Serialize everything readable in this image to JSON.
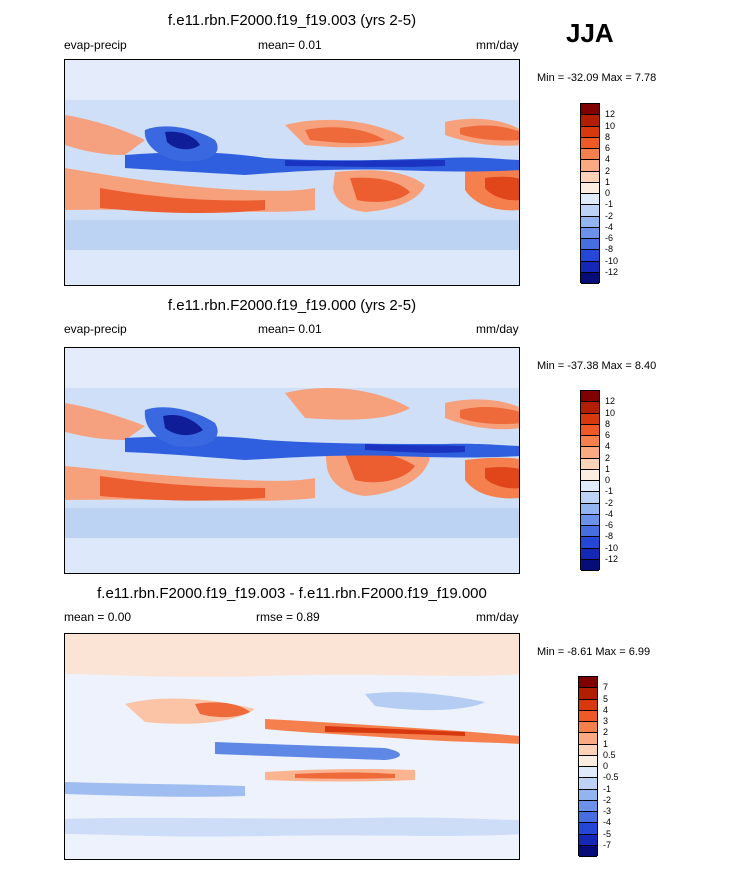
{
  "season": "JJA",
  "panels": [
    {
      "title": "f.e11.rbn.F2000.f19_f19.003 (yrs 2-5)",
      "left_label": "evap-precip",
      "mid_label": "mean=  0.01",
      "right_label": "mm/day",
      "minmax": "Min = -32.09 Max =   7.78",
      "colorbar_labels": [
        "12",
        "10",
        "8",
        "6",
        "4",
        "2",
        "1",
        "0",
        "-1",
        "-2",
        "-4",
        "-6",
        "-8",
        "-10",
        "-12"
      ],
      "colorbar_colors": [
        "#7f0000",
        "#b21e00",
        "#d8380e",
        "#ee5a27",
        "#f5804e",
        "#fba983",
        "#fdd2b7",
        "#fcede1",
        "#dfeafb",
        "#bcd3f5",
        "#93b5ef",
        "#6b91e8",
        "#466ee1",
        "#2447d6",
        "#1428b5",
        "#070d78"
      ]
    },
    {
      "title": "f.e11.rbn.F2000.f19_f19.000 (yrs 2-5)",
      "left_label": "evap-precip",
      "mid_label": "mean=  0.01",
      "right_label": "mm/day",
      "minmax": "Min = -37.38 Max =   8.40",
      "colorbar_labels": [
        "12",
        "10",
        "8",
        "6",
        "4",
        "2",
        "1",
        "0",
        "-1",
        "-2",
        "-4",
        "-6",
        "-8",
        "-10",
        "-12"
      ],
      "colorbar_colors": [
        "#7f0000",
        "#b21e00",
        "#d8380e",
        "#ee5a27",
        "#f5804e",
        "#fba983",
        "#fdd2b7",
        "#fcede1",
        "#dfeafb",
        "#bcd3f5",
        "#93b5ef",
        "#6b91e8",
        "#466ee1",
        "#2447d6",
        "#1428b5",
        "#070d78"
      ]
    },
    {
      "title": "f.e11.rbn.F2000.f19_f19.003 - f.e11.rbn.F2000.f19_f19.000",
      "left_label": "mean =   0.00",
      "mid_label": "rmse =   0.89",
      "right_label": "mm/day",
      "minmax": "Min =  -8.61 Max =   6.99",
      "colorbar_labels": [
        "7",
        "5",
        "4",
        "3",
        "2",
        "1",
        "0.5",
        "0",
        "-0.5",
        "-1",
        "-2",
        "-3",
        "-4",
        "-5",
        "-7"
      ],
      "colorbar_colors": [
        "#7f0000",
        "#b21e00",
        "#d8380e",
        "#ee5a27",
        "#f5804e",
        "#fba983",
        "#fdd2b7",
        "#fcede1",
        "#dfeafb",
        "#bcd3f5",
        "#93b5ef",
        "#6b91e8",
        "#466ee1",
        "#2447d6",
        "#1428b5",
        "#070d78"
      ]
    }
  ],
  "chart_data": [
    {
      "type": "heatmap",
      "title": "f.e11.rbn.F2000.f19_f19.003 (yrs 2-5)",
      "variable": "evap-precip",
      "units": "mm/day",
      "mean": 0.01,
      "min": -32.09,
      "max": 7.78,
      "levels": [
        -12,
        -10,
        -8,
        -6,
        -4,
        -2,
        -1,
        0,
        1,
        2,
        4,
        6,
        8,
        10,
        12
      ]
    },
    {
      "type": "heatmap",
      "title": "f.e11.rbn.F2000.f19_f19.000 (yrs 2-5)",
      "variable": "evap-precip",
      "units": "mm/day",
      "mean": 0.01,
      "min": -37.38,
      "max": 8.4,
      "levels": [
        -12,
        -10,
        -8,
        -6,
        -4,
        -2,
        -1,
        0,
        1,
        2,
        4,
        6,
        8,
        10,
        12
      ]
    },
    {
      "type": "heatmap",
      "title": "f.e11.rbn.F2000.f19_f19.003 - f.e11.rbn.F2000.f19_f19.000",
      "units": "mm/day",
      "mean": 0.0,
      "rmse": 0.89,
      "min": -8.61,
      "max": 6.99,
      "levels": [
        -7,
        -5,
        -4,
        -3,
        -2,
        -1,
        -0.5,
        0,
        0.5,
        1,
        2,
        3,
        4,
        5,
        7
      ]
    }
  ]
}
